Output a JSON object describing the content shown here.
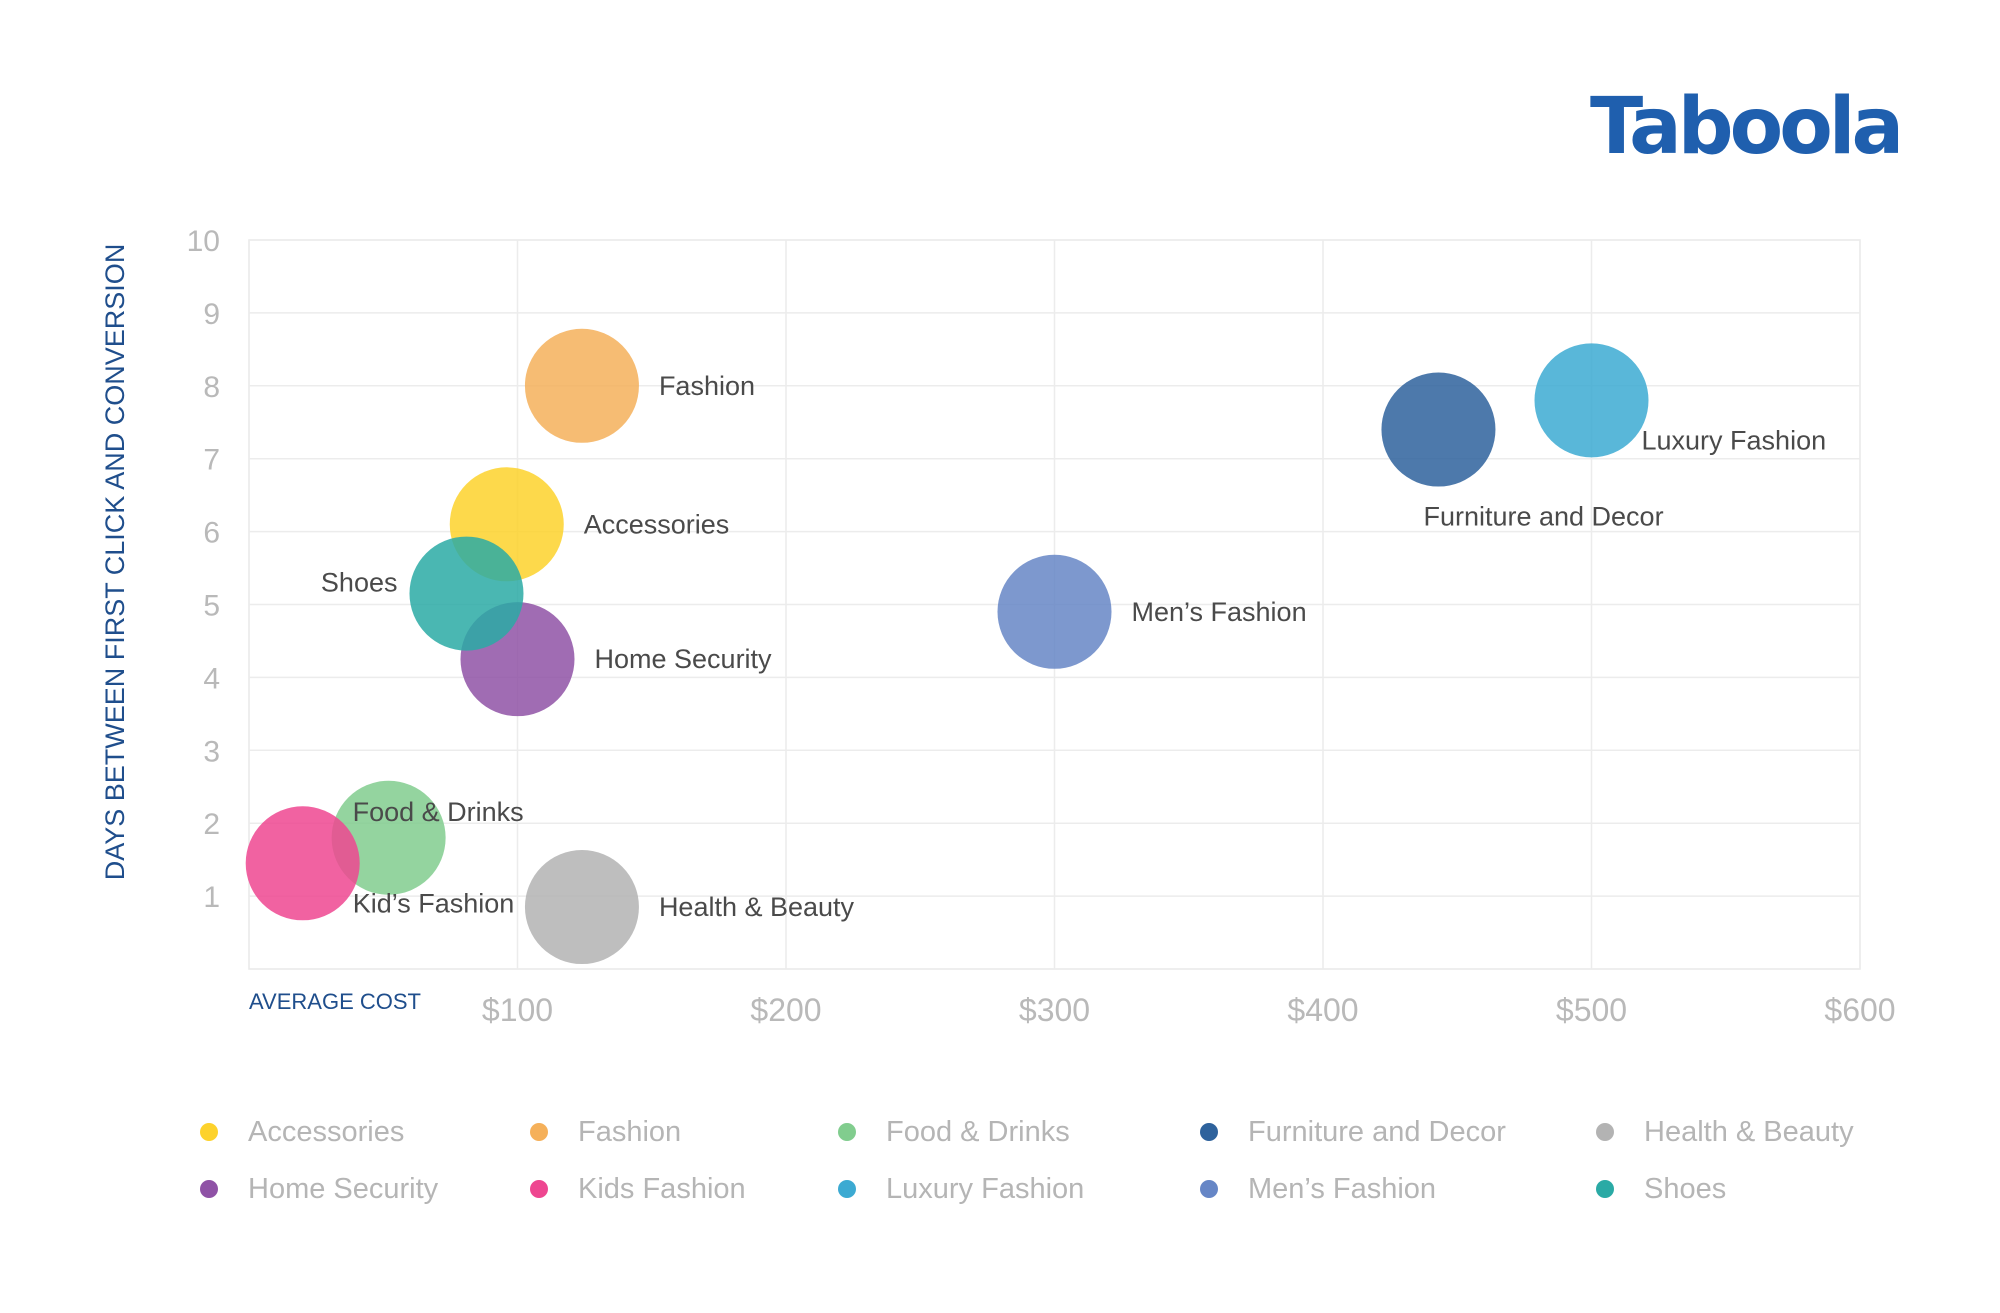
{
  "brand": {
    "logo_text": "Taboola",
    "color": "#1f5fae"
  },
  "chart_data": {
    "type": "scatter",
    "title": "",
    "xlabel": "AVERAGE COST",
    "ylabel": "DAYS BETWEEN FIRST CLICK AND CONVERSION",
    "xlim": [
      0,
      600
    ],
    "ylim": [
      0,
      10
    ],
    "x_ticks": [
      100,
      200,
      300,
      400,
      500,
      600
    ],
    "x_tick_labels": [
      "$100",
      "$200",
      "$300",
      "$400",
      "$500",
      "$600"
    ],
    "y_ticks": [
      1,
      2,
      3,
      4,
      5,
      6,
      7,
      8,
      9,
      10
    ],
    "y_tick_labels": [
      "1",
      "2",
      "3",
      "4",
      "5",
      "6",
      "7",
      "8",
      "9",
      "10"
    ],
    "grid": true,
    "legend_position": "bottom",
    "series": [
      {
        "name": "Accessories",
        "point_label": "Accessories",
        "x": 96,
        "y": 6.1,
        "color": "#fdd22c",
        "label_side": "right"
      },
      {
        "name": "Fashion",
        "point_label": "Fashion",
        "x": 124,
        "y": 8.0,
        "color": "#f5b05a",
        "label_side": "right"
      },
      {
        "name": "Food & Drinks",
        "point_label": "Food & Drinks",
        "x": 52,
        "y": 1.8,
        "color": "#81cd8e",
        "label_side": "above"
      },
      {
        "name": "Furniture and Decor",
        "point_label": "Furniture and Decor",
        "x": 443,
        "y": 7.4,
        "color": "#2e629c",
        "label_side": "below"
      },
      {
        "name": "Health & Beauty",
        "point_label": "Health & Beauty",
        "x": 124,
        "y": 0.85,
        "color": "#b3b3b3",
        "label_side": "right"
      },
      {
        "name": "Home Security",
        "point_label": "Home Security",
        "x": 100,
        "y": 4.25,
        "color": "#8f52a6",
        "label_side": "right"
      },
      {
        "name": "Kids Fashion",
        "point_label": "Kid’s Fashion",
        "x": 20,
        "y": 1.45,
        "color": "#ee4690",
        "label_side": "below-right"
      },
      {
        "name": "Luxury Fashion",
        "point_label": "Luxury Fashion",
        "x": 500,
        "y": 7.8,
        "color": "#3caad2",
        "label_side": "below-right"
      },
      {
        "name": "Men’s Fashion",
        "point_label": "Men’s Fashion",
        "x": 300,
        "y": 4.9,
        "color": "#6686c6",
        "label_side": "right"
      },
      {
        "name": "Shoes",
        "point_label": "Shoes",
        "x": 81,
        "y": 5.15,
        "color": "#2aaaa5",
        "label_side": "left"
      }
    ]
  }
}
